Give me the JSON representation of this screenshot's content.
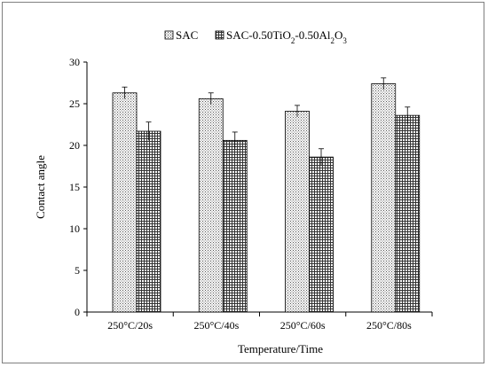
{
  "chart_data": {
    "type": "bar",
    "title": "",
    "xlabel": "Temperature/Time",
    "ylabel": "Contact angle",
    "categories": [
      "250°C/20s",
      "250°C/40s",
      "250°C/60s",
      "250°C/80s"
    ],
    "ylim": [
      0,
      30
    ],
    "yticks": [
      0,
      5,
      10,
      15,
      20,
      25,
      30
    ],
    "grid": false,
    "legend_position": "top-center",
    "series": [
      {
        "name": "SAC",
        "pattern": "dotted",
        "values": [
          26.3,
          25.6,
          24.1,
          27.4
        ],
        "errors": [
          0.7,
          0.7,
          0.7,
          0.7
        ]
      },
      {
        "name_parts": [
          {
            "t": "SAC-0.50TiO"
          },
          {
            "t": "2",
            "sub": true
          },
          {
            "t": "-0.50Al"
          },
          {
            "t": "2",
            "sub": true
          },
          {
            "t": "O"
          },
          {
            "t": "3",
            "sub": true
          }
        ],
        "pattern": "grid",
        "values": [
          21.7,
          20.6,
          18.6,
          23.6
        ],
        "errors": [
          1.1,
          1.0,
          1.0,
          1.0
        ]
      }
    ]
  }
}
